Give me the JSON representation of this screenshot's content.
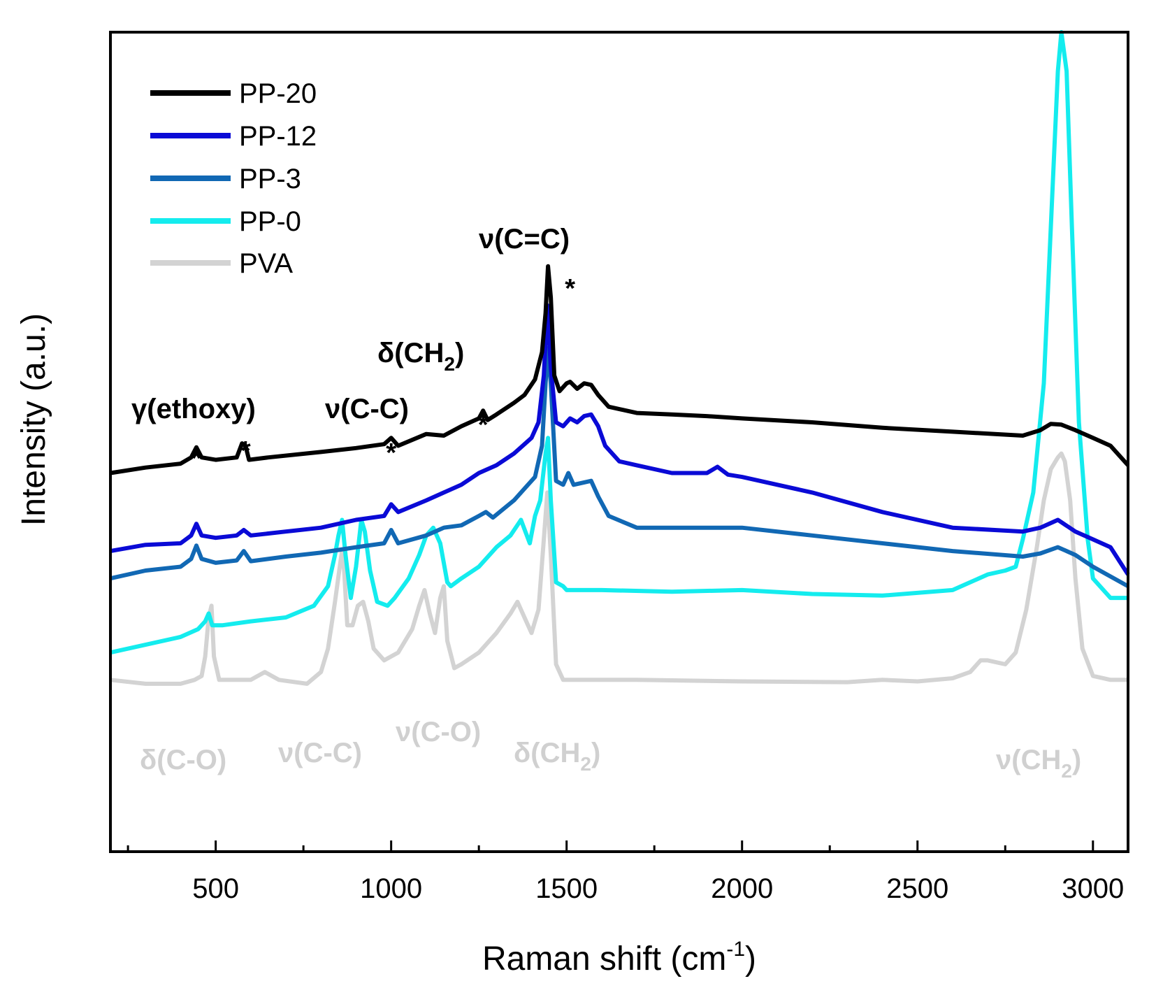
{
  "chart_data": {
    "type": "line",
    "title": "",
    "xlabel": "Raman shift (cm",
    "xlabel_sup": "-1",
    "xlabel_close": ")",
    "ylabel": "Intensity (a.u.)",
    "xlim": [
      200,
      3100
    ],
    "ylim": [
      0,
      100
    ],
    "xticks": [
      500,
      1000,
      1500,
      2000,
      2500,
      3000
    ],
    "xtick_labels": [
      "500",
      "1000",
      "1500",
      "2000",
      "2500",
      "3000"
    ],
    "legend": {
      "position": "top-left",
      "entries": [
        "PP-20",
        "PP-12",
        "PP-3",
        "PP-0",
        "PVA"
      ]
    },
    "series": [
      {
        "name": "PP-20",
        "color": "#000000",
        "x": [
          200,
          300,
          400,
          430,
          445,
          460,
          500,
          560,
          575,
          585,
          595,
          650,
          800,
          900,
          980,
          1000,
          1020,
          1100,
          1150,
          1200,
          1250,
          1262,
          1275,
          1300,
          1350,
          1380,
          1410,
          1430,
          1440,
          1447,
          1455,
          1465,
          1480,
          1500,
          1510,
          1530,
          1550,
          1570,
          1590,
          1620,
          1700,
          1800,
          1900,
          2000,
          2200,
          2400,
          2600,
          2800,
          2850,
          2880,
          2910,
          2950,
          3000,
          3050,
          3100
        ],
        "y": [
          43.5,
          44.2,
          44.7,
          45.5,
          46.8,
          45.5,
          45.2,
          45.5,
          47.3,
          47.0,
          45.2,
          45.5,
          46.2,
          46.7,
          47.2,
          48.0,
          47.0,
          48.5,
          48.3,
          49.5,
          50.5,
          51.5,
          50.3,
          51.0,
          52.5,
          53.5,
          55.5,
          59.0,
          64.0,
          70.0,
          66.0,
          56.0,
          54.0,
          55.0,
          55.2,
          54.3,
          55.0,
          54.8,
          53.5,
          52.0,
          51.2,
          51.0,
          50.8,
          50.5,
          50.0,
          49.3,
          48.8,
          48.3,
          49.0,
          49.8,
          49.7,
          49.0,
          48.0,
          47.0,
          44.5
        ]
      },
      {
        "name": "PP-12",
        "color": "#0a0ad6",
        "x": [
          200,
          300,
          400,
          430,
          445,
          460,
          500,
          560,
          580,
          600,
          700,
          800,
          900,
          980,
          1000,
          1020,
          1100,
          1150,
          1200,
          1250,
          1300,
          1350,
          1400,
          1420,
          1435,
          1445,
          1455,
          1470,
          1490,
          1510,
          1530,
          1550,
          1570,
          1590,
          1610,
          1650,
          1700,
          1800,
          1900,
          1930,
          1960,
          2000,
          2200,
          2400,
          2600,
          2800,
          2850,
          2900,
          2950,
          3000,
          3050,
          3100
        ],
        "y": [
          33.5,
          34.3,
          34.5,
          35.5,
          37.0,
          35.5,
          35.2,
          35.5,
          36.2,
          35.5,
          36.0,
          36.5,
          37.5,
          38.0,
          39.5,
          38.5,
          40.0,
          41.0,
          42.0,
          43.5,
          44.5,
          46.0,
          48.0,
          50.0,
          56.0,
          65.0,
          57.0,
          50.0,
          49.5,
          50.5,
          50.0,
          50.8,
          51.0,
          49.5,
          47.0,
          45.0,
          44.5,
          43.5,
          43.5,
          44.3,
          43.3,
          43.0,
          41.0,
          38.5,
          36.5,
          36.0,
          36.5,
          37.5,
          36.0,
          35.0,
          34.0,
          30.5
        ]
      },
      {
        "name": "PP-3",
        "color": "#1168b4",
        "x": [
          200,
          300,
          400,
          430,
          445,
          460,
          500,
          560,
          580,
          600,
          700,
          800,
          900,
          980,
          1000,
          1020,
          1100,
          1150,
          1200,
          1250,
          1270,
          1290,
          1350,
          1380,
          1410,
          1430,
          1440,
          1447,
          1455,
          1470,
          1490,
          1505,
          1520,
          1550,
          1570,
          1590,
          1620,
          1700,
          1800,
          2000,
          2200,
          2400,
          2600,
          2800,
          2850,
          2900,
          2950,
          3000,
          3100
        ],
        "y": [
          30.0,
          31.0,
          31.5,
          32.5,
          34.2,
          32.5,
          32.0,
          32.3,
          33.5,
          32.2,
          32.8,
          33.3,
          34.0,
          34.5,
          36.2,
          34.5,
          35.5,
          36.5,
          36.8,
          38.0,
          38.5,
          37.8,
          40.0,
          41.5,
          43.0,
          47.0,
          55.0,
          59.5,
          55.0,
          42.5,
          42.0,
          43.5,
          42.0,
          42.3,
          42.5,
          40.5,
          38.0,
          36.5,
          36.5,
          36.5,
          35.5,
          34.5,
          33.5,
          32.8,
          33.2,
          34.0,
          33.0,
          31.5,
          29.0
        ]
      },
      {
        "name": "PP-0",
        "color": "#14ecee",
        "x": [
          200,
          300,
          400,
          450,
          470,
          480,
          490,
          520,
          600,
          700,
          780,
          820,
          840,
          850,
          860,
          870,
          885,
          900,
          915,
          925,
          940,
          960,
          990,
          1010,
          1050,
          1080,
          1100,
          1120,
          1140,
          1160,
          1170,
          1200,
          1250,
          1300,
          1340,
          1370,
          1395,
          1410,
          1425,
          1440,
          1447,
          1455,
          1470,
          1490,
          1500,
          1600,
          1800,
          2000,
          2200,
          2400,
          2600,
          2650,
          2700,
          2750,
          2780,
          2800,
          2830,
          2860,
          2880,
          2900,
          2910,
          2925,
          2940,
          2960,
          2985,
          3000,
          3050,
          3100
        ],
        "y": [
          20.5,
          21.5,
          22.5,
          23.5,
          24.5,
          25.5,
          24.0,
          24.0,
          24.5,
          25.0,
          26.5,
          29.0,
          33.0,
          35.5,
          37.5,
          33.0,
          27.5,
          31.5,
          37.5,
          36.0,
          31.0,
          27.0,
          26.5,
          27.5,
          30.0,
          33.0,
          35.5,
          36.5,
          34.5,
          29.5,
          29.0,
          30.0,
          31.5,
          34.0,
          35.5,
          37.5,
          34.5,
          38.0,
          40.0,
          46.0,
          48.0,
          40.0,
          29.5,
          29.0,
          28.5,
          28.5,
          28.3,
          28.5,
          28.0,
          27.8,
          28.5,
          29.5,
          30.5,
          31.0,
          31.5,
          35.0,
          41.0,
          55.0,
          75.0,
          95.0,
          100.0,
          95.0,
          75.0,
          50.0,
          35.0,
          30.0,
          27.5,
          27.5
        ]
      },
      {
        "name": "PVA",
        "color": "#d3d3d3",
        "x": [
          200,
          300,
          400,
          440,
          460,
          470,
          480,
          488,
          495,
          510,
          600,
          640,
          680,
          760,
          800,
          820,
          840,
          855,
          860,
          866,
          875,
          890,
          905,
          920,
          935,
          950,
          980,
          1020,
          1060,
          1080,
          1095,
          1110,
          1125,
          1140,
          1150,
          1160,
          1180,
          1200,
          1250,
          1300,
          1340,
          1360,
          1380,
          1400,
          1420,
          1435,
          1445,
          1455,
          1470,
          1490,
          1550,
          1700,
          2000,
          2300,
          2400,
          2500,
          2600,
          2650,
          2680,
          2700,
          2750,
          2780,
          2810,
          2840,
          2860,
          2880,
          2900,
          2910,
          2920,
          2935,
          2950,
          2970,
          3000,
          3050,
          3100
        ],
        "y": [
          17.0,
          16.5,
          16.5,
          17.0,
          17.5,
          20.0,
          25.0,
          26.5,
          20.0,
          17.0,
          17.0,
          18.0,
          17.0,
          16.5,
          18.0,
          21.0,
          27.0,
          32.0,
          33.5,
          31.0,
          24.0,
          24.0,
          26.5,
          27.0,
          24.5,
          21.0,
          19.5,
          20.5,
          23.5,
          26.5,
          28.5,
          25.5,
          23.0,
          27.5,
          29.0,
          22.0,
          18.5,
          19.0,
          20.5,
          23.0,
          25.5,
          27.0,
          25.0,
          23.0,
          26.0,
          35.0,
          41.0,
          33.0,
          19.0,
          17.0,
          17.0,
          17.0,
          16.8,
          16.7,
          17.0,
          16.8,
          17.2,
          18.0,
          19.5,
          19.5,
          19.0,
          20.5,
          26.0,
          34.0,
          40.0,
          44.0,
          45.5,
          46.0,
          45.0,
          40.0,
          30.0,
          21.0,
          17.5,
          17.0,
          17.0
        ]
      }
    ],
    "annotations": [
      {
        "text": "γ(ethoxy)",
        "color": "black"
      },
      {
        "text": "ν(C-C)",
        "color": "black"
      },
      {
        "text": "δ(CH",
        "sub": "2",
        "close": ")",
        "color": "black"
      },
      {
        "text": "ν(C=C)",
        "color": "black"
      },
      {
        "text": "δ(C-O)",
        "color": "grey"
      },
      {
        "text": "ν(C-C)",
        "color": "grey"
      },
      {
        "text": "ν(C-O)",
        "color": "grey"
      },
      {
        "text": "δ(CH",
        "sub": "2",
        "close": ")",
        "color": "grey"
      },
      {
        "text": "ν(CH",
        "sub": "2",
        "close": ")",
        "color": "grey"
      }
    ],
    "markers": [
      {
        "symbol": "*",
        "x": 445
      },
      {
        "symbol": "*",
        "x": 585
      },
      {
        "symbol": "*",
        "x": 1000
      },
      {
        "symbol": "*",
        "x": 1262
      },
      {
        "symbol": "*",
        "x": 1510
      }
    ]
  }
}
